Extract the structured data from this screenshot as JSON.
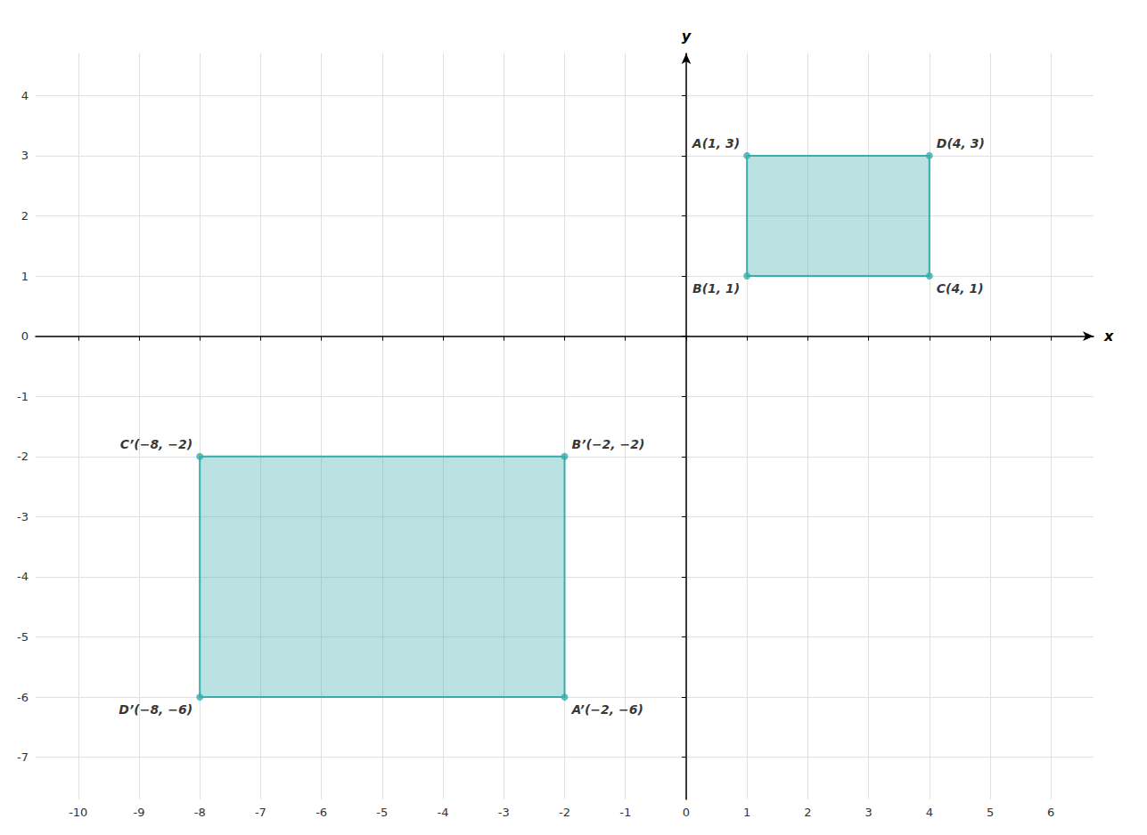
{
  "chart_data": {
    "type": "polygon",
    "xlabel": "x",
    "ylabel": "y",
    "xlim": [
      -10.7,
      6.7
    ],
    "ylim": [
      -7.7,
      4.7
    ],
    "xticks": [
      -10,
      -9,
      -8,
      -7,
      -6,
      -5,
      -4,
      -3,
      -2,
      -1,
      0,
      1,
      2,
      3,
      4,
      5,
      6
    ],
    "yticks": [
      -7,
      -6,
      -5,
      -4,
      -3,
      -2,
      -1,
      0,
      1,
      2,
      3,
      4
    ],
    "grid": true,
    "series": [
      {
        "color": "#3aacac",
        "x": [
          1,
          1,
          4,
          4
        ],
        "y": [
          3,
          1,
          1,
          3
        ],
        "labels": [
          "A(1, 3)",
          "B(1, 1)",
          "C(4, 1)",
          "D(4, 3)"
        ]
      },
      {
        "color": "#3aacac",
        "x": [
          -2,
          -2,
          -8,
          -8
        ],
        "y": [
          -6,
          -2,
          -2,
          -6
        ],
        "labels": [
          "A’(−2, −6)",
          "B’(−2, −2)",
          "C’(−8, −2)",
          "D’(−8, −6)"
        ]
      }
    ]
  }
}
